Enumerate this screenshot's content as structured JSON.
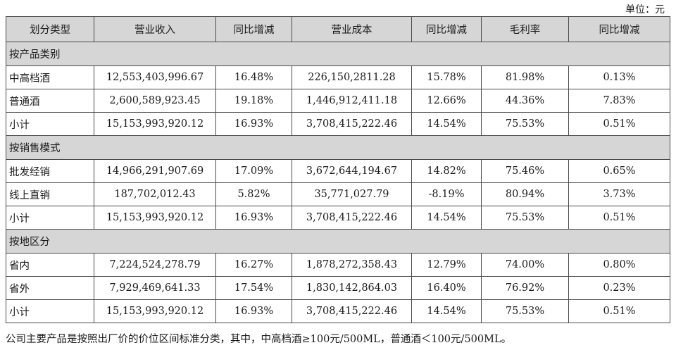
{
  "unit_label": "单位：元",
  "headers": [
    "划分类型",
    "营业收入",
    "同比增减",
    "营业成本",
    "同比增减",
    "毛利率",
    "同比增减"
  ],
  "sections": [
    {
      "title": "按产品类别",
      "rows": [
        [
          "中高档酒",
          "12,553,403,996.67",
          "16.48%",
          "226,150,2811.28",
          "15.78%",
          "81.98%",
          "0.13%"
        ],
        [
          "普通酒",
          "2,600,589,923.45",
          "19.18%",
          "1,446,912,411.18",
          "12.66%",
          "44.36%",
          "7.83%"
        ],
        [
          "小计",
          "15,153,993,920.12",
          "16.93%",
          "3,708,415,222.46",
          "14.54%",
          "75.53%",
          "0.51%"
        ]
      ]
    },
    {
      "title": "按销售模式",
      "rows": [
        [
          "批发经销",
          "14,966,291,907.69",
          "17.09%",
          "3,672,644,194.67",
          "14.82%",
          "75.46%",
          "0.65%"
        ],
        [
          "线上直销",
          "187,702,012.43",
          "5.82%",
          "35,771,027.79",
          "-8.19%",
          "80.94%",
          "3.73%"
        ],
        [
          "小计",
          "15,153,993,920.12",
          "16.93%",
          "3,708,415,222.46",
          "14.54%",
          "75.53%",
          "0.51%"
        ]
      ]
    },
    {
      "title": "按地区分",
      "rows": [
        [
          "省内",
          "7,224,524,278.79",
          "16.27%",
          "1,878,272,358.43",
          "12.79%",
          "74.00%",
          "0.80%"
        ],
        [
          "省外",
          "7,929,469,641.33",
          "17.54%",
          "1,830,142,864.03",
          "16.40%",
          "76.92%",
          "0.23%"
        ],
        [
          "小计",
          "15,153,993,920.12",
          "16.93%",
          "3,708,415,222.46",
          "14.54%",
          "75.53%",
          "0.51%"
        ]
      ]
    }
  ],
  "footnote": "公司主要产品是按照出厂价的价位区间标准分类，其中，中高档酒≥100元/500ML，普通酒＜100元/500ML。"
}
